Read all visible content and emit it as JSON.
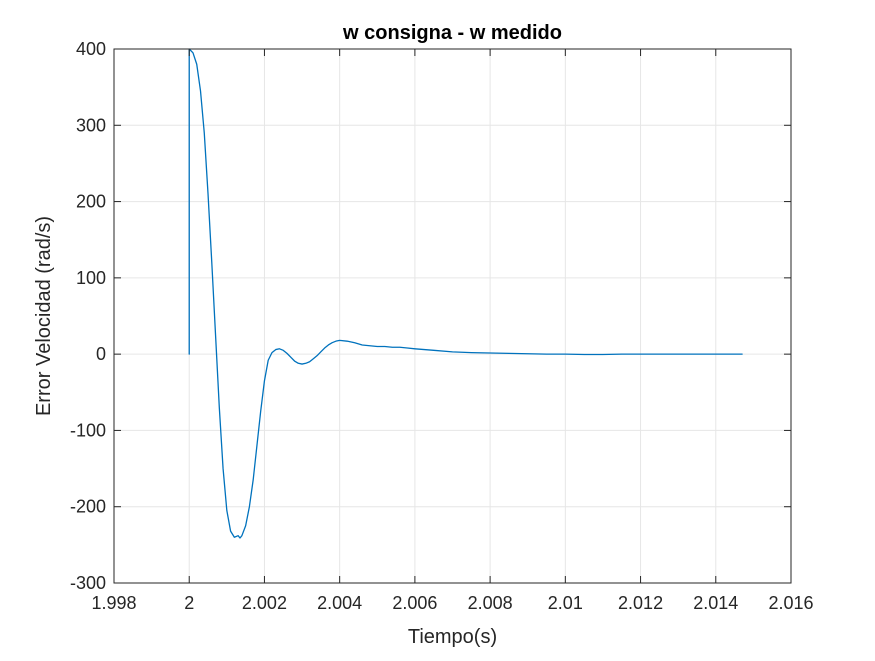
{
  "chart_data": {
    "type": "line",
    "title": "w consigna - w medido",
    "xlabel": "Tiempo(s)",
    "ylabel": "Error Velocidad (rad/s)",
    "xlim": [
      1.998,
      2.016
    ],
    "ylim": [
      -300,
      400
    ],
    "xticks": [
      1.998,
      2,
      2.002,
      2.004,
      2.006,
      2.008,
      2.01,
      2.012,
      2.014,
      2.016
    ],
    "xtick_labels": [
      "1.998",
      "2",
      "2.002",
      "2.004",
      "2.006",
      "2.008",
      "2.01",
      "2.012",
      "2.014",
      "2.016"
    ],
    "yticks": [
      -300,
      -200,
      -100,
      0,
      100,
      200,
      300,
      400
    ],
    "ytick_labels": [
      "-300",
      "-200",
      "-100",
      "0",
      "100",
      "200",
      "300",
      "400"
    ],
    "grid": true,
    "colors": {
      "line": "#0072BD",
      "grid": "#e6e6e6",
      "axes": "#262626"
    },
    "series": [
      {
        "x": [
          2.0,
          2.0,
          2.0001,
          2.0002,
          2.0003,
          2.0004,
          2.0005,
          2.0006,
          2.0007,
          2.0008,
          2.0009,
          2.001,
          2.0011,
          2.0012,
          2.0013,
          2.00135,
          2.0014,
          2.0015,
          2.0016,
          2.0017,
          2.0018,
          2.0019,
          2.002,
          2.0021,
          2.0022,
          2.0023,
          2.0024,
          2.0025,
          2.0026,
          2.0027,
          2.0028,
          2.0029,
          2.003,
          2.0031,
          2.0032,
          2.0033,
          2.0034,
          2.0035,
          2.0036,
          2.0037,
          2.0038,
          2.0039,
          2.004,
          2.0042,
          2.0044,
          2.0046,
          2.0048,
          2.005,
          2.0052,
          2.0054,
          2.0056,
          2.0058,
          2.006,
          2.0065,
          2.007,
          2.0075,
          2.008,
          2.0085,
          2.009,
          2.0095,
          2.01,
          2.0105,
          2.011,
          2.0115,
          2.012,
          2.0125,
          2.013,
          2.0135,
          2.014,
          2.0147
        ],
        "y": [
          0,
          400,
          395,
          380,
          345,
          290,
          210,
          120,
          25,
          -70,
          -150,
          -205,
          -232,
          -240,
          -238,
          -241,
          -238,
          -225,
          -200,
          -165,
          -120,
          -75,
          -35,
          -8,
          2,
          6,
          7,
          5,
          1,
          -4,
          -9,
          -12,
          -13,
          -12,
          -10,
          -6,
          -2,
          3,
          8,
          12,
          15,
          17,
          18,
          17,
          15,
          12,
          11,
          10,
          10,
          9,
          9,
          8,
          7,
          5,
          3,
          2,
          1.5,
          1,
          0.5,
          0,
          0,
          -0.5,
          -0.5,
          0,
          0,
          0,
          0,
          0,
          0,
          0
        ]
      }
    ]
  }
}
